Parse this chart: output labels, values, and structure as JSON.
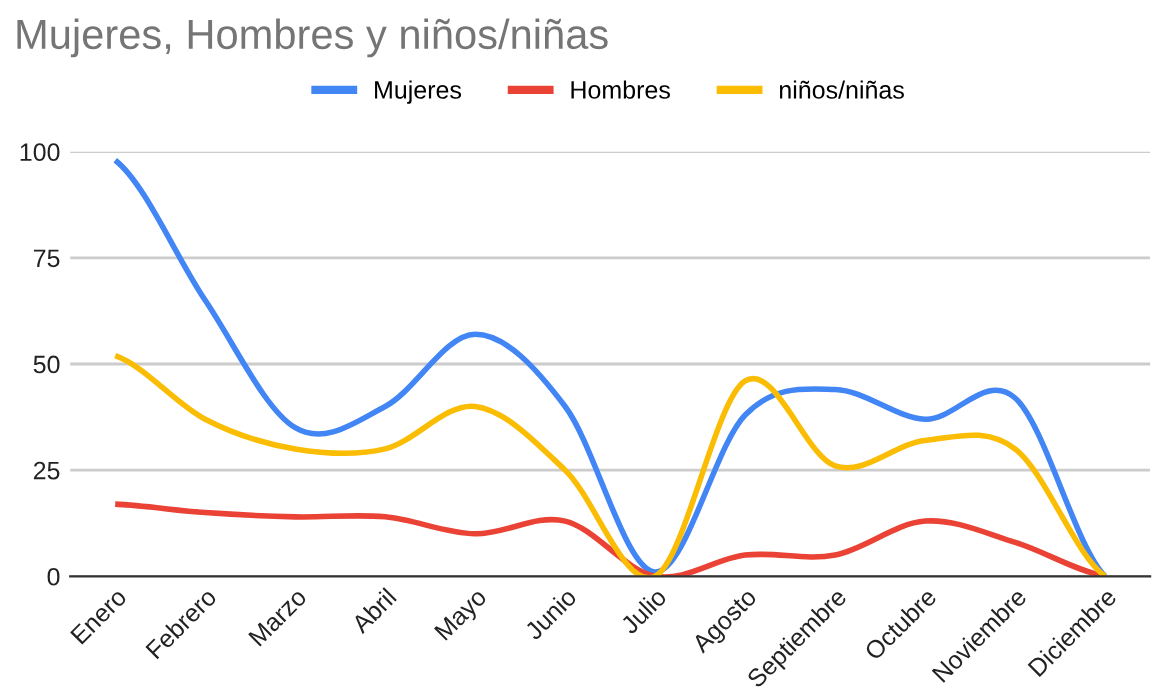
{
  "chart_data": {
    "type": "line",
    "title": "Mujeres, Hombres y niños/niñas",
    "categories": [
      "Enero",
      "Febrero",
      "Marzo",
      "Abril",
      "Mayo",
      "Junio",
      "Julio",
      "Agosto",
      "Septiembre",
      "Octubre",
      "Noviembre",
      "Diciembre"
    ],
    "series": [
      {
        "name": "Mujeres",
        "color": "#4285f4",
        "values": [
          98,
          65,
          35,
          40,
          57,
          40,
          1,
          38,
          44,
          37,
          42,
          0
        ]
      },
      {
        "name": "Hombres",
        "color": "#ea4335",
        "values": [
          17,
          15,
          14,
          14,
          10,
          13,
          0,
          5,
          5,
          13,
          8,
          0
        ]
      },
      {
        "name": "niños/niñas",
        "color": "#fbbc04",
        "values": [
          52,
          37,
          30,
          30,
          40,
          25,
          0,
          46,
          26,
          32,
          30,
          0
        ]
      }
    ],
    "ylim": [
      0,
      100
    ],
    "yticks": [
      0,
      25,
      50,
      75,
      100
    ],
    "grid": "y",
    "legend": "top",
    "marker": "none",
    "line_style": "solid"
  }
}
